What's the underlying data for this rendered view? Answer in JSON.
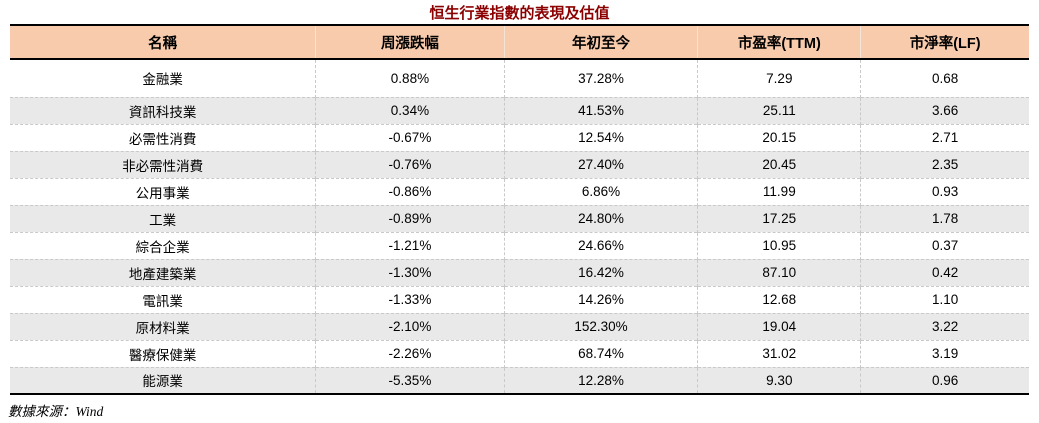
{
  "title": "恒生行業指數的表現及估值",
  "source_note": "數據來源：Wind",
  "colors": {
    "header_bg": "#F8CBAD",
    "row_alt_bg": "#E9E9E9",
    "title_color": "#8B0000",
    "border_dark": "#000000",
    "grid_light": "#C9C9C9"
  },
  "chart_data": {
    "type": "table",
    "title": "恒生行業指數的表現及估值",
    "columns": [
      "名稱",
      "周漲跌幅",
      "年初至今",
      "市盈率(TTM)",
      "市淨率(LF)"
    ],
    "rows": [
      [
        "金融業",
        "0.88%",
        "37.28%",
        "7.29",
        "0.68"
      ],
      [
        "資訊科技業",
        "0.34%",
        "41.53%",
        "25.11",
        "3.66"
      ],
      [
        "必需性消費",
        "-0.67%",
        "12.54%",
        "20.15",
        "2.71"
      ],
      [
        "非必需性消費",
        "-0.76%",
        "27.40%",
        "20.45",
        "2.35"
      ],
      [
        "公用事業",
        "-0.86%",
        "6.86%",
        "11.99",
        "0.93"
      ],
      [
        "工業",
        "-0.89%",
        "24.80%",
        "17.25",
        "1.78"
      ],
      [
        "綜合企業",
        "-1.21%",
        "24.66%",
        "10.95",
        "0.37"
      ],
      [
        "地產建築業",
        "-1.30%",
        "16.42%",
        "87.10",
        "0.42"
      ],
      [
        "電訊業",
        "-1.33%",
        "14.26%",
        "12.68",
        "1.10"
      ],
      [
        "原材料業",
        "-2.10%",
        "152.30%",
        "19.04",
        "3.22"
      ],
      [
        "醫療保健業",
        "-2.26%",
        "68.74%",
        "31.02",
        "3.19"
      ],
      [
        "能源業",
        "-5.35%",
        "12.28%",
        "9.30",
        "0.96"
      ]
    ],
    "source": "數據來源：Wind",
    "layout": {
      "banding": "even rows shaded",
      "header_style": "peach fill, black bold text, thick black top/bottom rules",
      "gridlines": "thin dashed light gray"
    }
  }
}
